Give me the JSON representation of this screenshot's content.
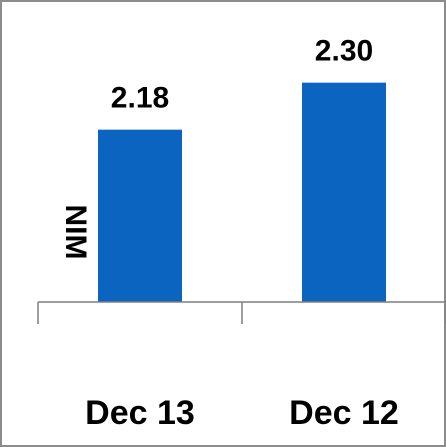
{
  "chart_data": {
    "type": "bar",
    "categories": [
      "Dec 13",
      "Dec 12"
    ],
    "values": [
      2.18,
      2.3
    ],
    "value_labels": [
      "2.18",
      "2.30"
    ],
    "title": "",
    "xlabel": "",
    "ylabel": "NIM",
    "ylim": [
      1.74,
      2.46
    ],
    "grid": false,
    "legend": "none",
    "colors": {
      "bar": "#0b64c0",
      "frame": "#8c8c8c",
      "axis": "#7f7f7f"
    }
  }
}
